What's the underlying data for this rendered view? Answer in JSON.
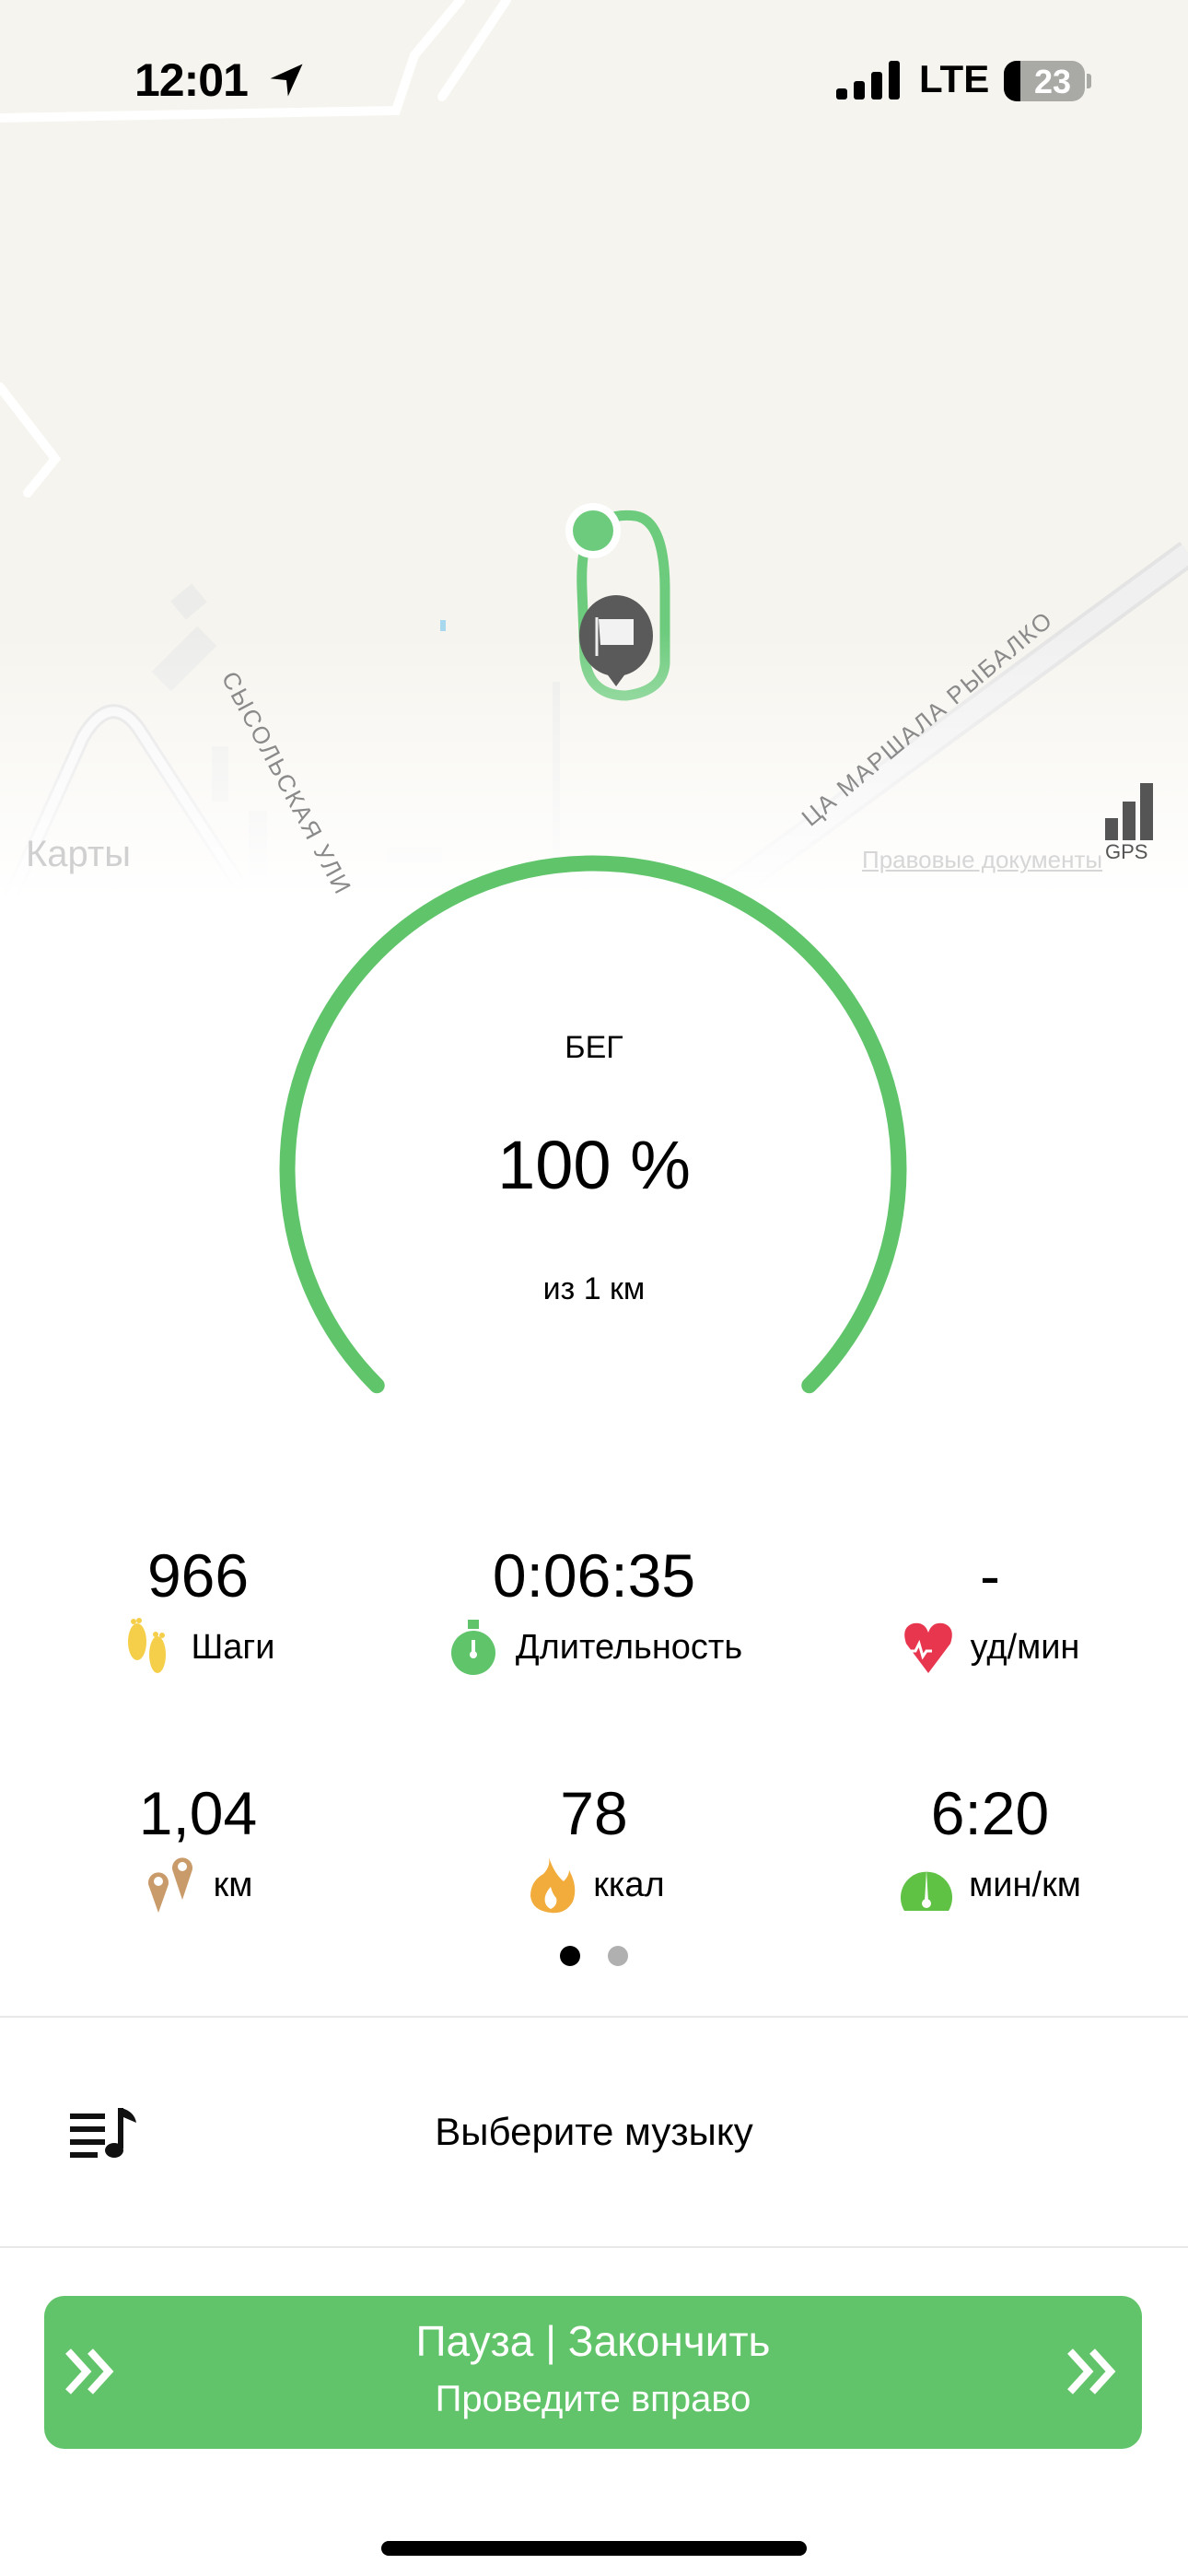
{
  "status_bar": {
    "time": "12:01",
    "network": "LTE",
    "battery": "23",
    "location_icon": "location-arrow-icon"
  },
  "map": {
    "street_1": "СЫСОЛЬСКАЯ УЛИ",
    "street_2": "ЦА МАРШАЛА РЫБАЛКО",
    "attribution": "Карты",
    "legal": "Правовые документы",
    "gps_label": "GPS",
    "route_color": "#6ccb7c"
  },
  "progress": {
    "activity": "БЕГ",
    "percent_label": "100 %",
    "percent": 100,
    "goal": "из 1 км",
    "color": "#5fc46a"
  },
  "stats": [
    {
      "value": "966",
      "label": "Шаги",
      "icon": "footprints-icon"
    },
    {
      "value": "0:06:35",
      "label": "Длительность",
      "icon": "stopwatch-icon"
    },
    {
      "value": "-",
      "label": "уд/мин",
      "icon": "heart-rate-icon"
    },
    {
      "value": "1,04",
      "label": "км",
      "icon": "map-pins-icon"
    },
    {
      "value": "78",
      "label": "ккал",
      "icon": "flame-icon"
    },
    {
      "value": "6:20",
      "label": "мин/км",
      "icon": "speedometer-icon"
    }
  ],
  "pager": {
    "pages": 2,
    "active": 1
  },
  "music": {
    "label": "Выберите музыку"
  },
  "swipe_button": {
    "title": "Пауза | Закончить",
    "subtitle": "Проведите вправо",
    "color": "#62c46a"
  }
}
